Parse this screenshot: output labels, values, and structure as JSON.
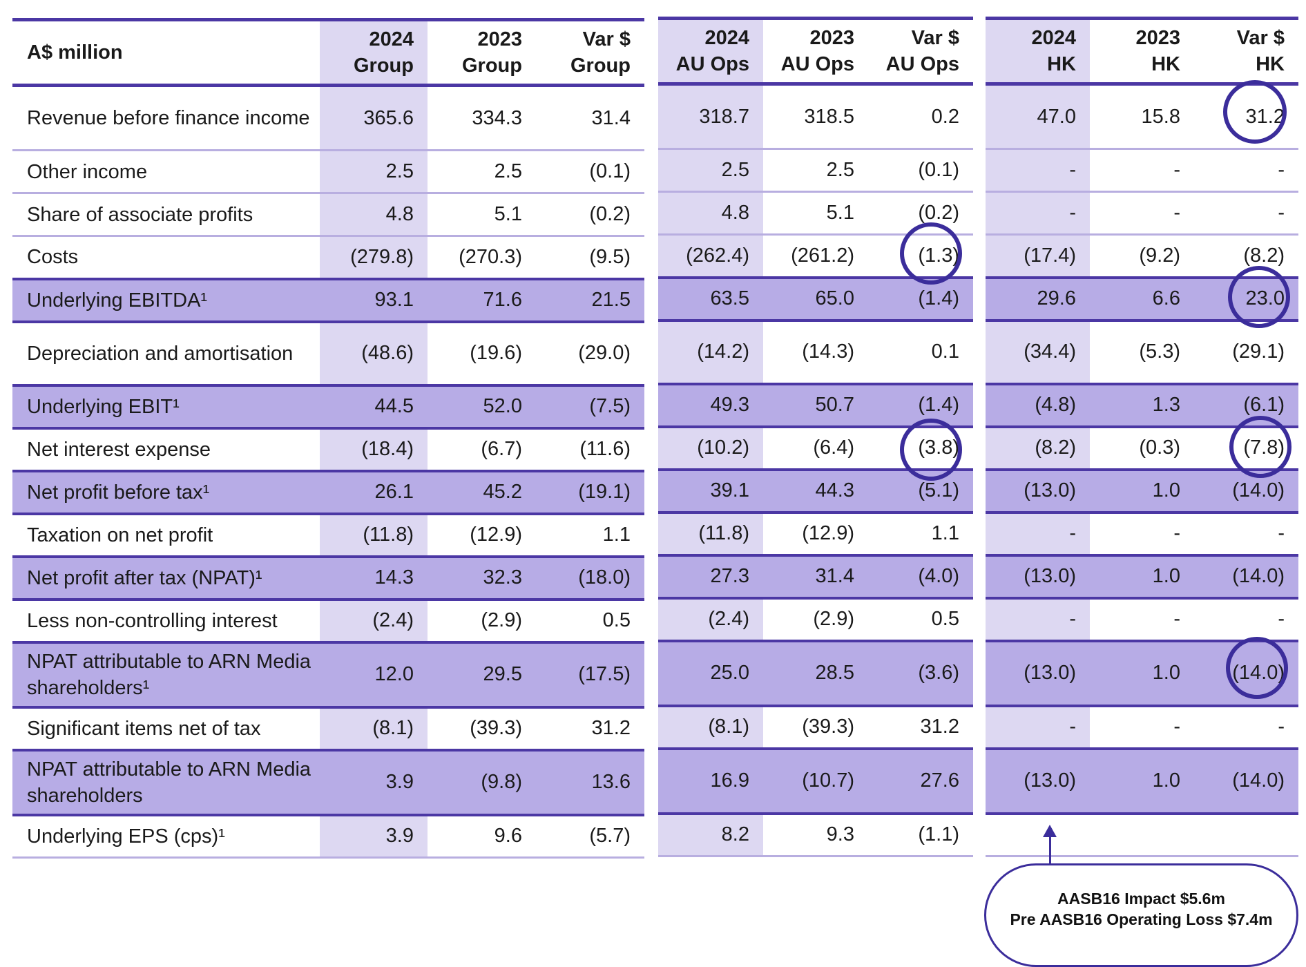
{
  "header": {
    "row_label": "A$ million",
    "group": [
      "2024\nGroup",
      "2023\nGroup",
      "Var $\nGroup"
    ],
    "au": [
      "2024\nAU Ops",
      "2023\nAU Ops",
      "Var $\nAU Ops"
    ],
    "hk": [
      "2024\nHK",
      "2023\nHK",
      "Var $\nHK"
    ]
  },
  "rows": [
    {
      "label": "Revenue before finance income",
      "highlight": false,
      "group": [
        "365.6",
        "334.3",
        "31.4"
      ],
      "au": [
        "318.7",
        "318.5",
        "0.2"
      ],
      "hk": [
        "47.0",
        "15.8",
        "31.2"
      ]
    },
    {
      "label": "Other income",
      "highlight": false,
      "group": [
        "2.5",
        "2.5",
        "(0.1)"
      ],
      "au": [
        "2.5",
        "2.5",
        "(0.1)"
      ],
      "hk": [
        "-",
        "-",
        "-"
      ]
    },
    {
      "label": "Share of associate profits",
      "highlight": false,
      "group": [
        "4.8",
        "5.1",
        "(0.2)"
      ],
      "au": [
        "4.8",
        "5.1",
        "(0.2)"
      ],
      "hk": [
        "-",
        "-",
        "-"
      ]
    },
    {
      "label": "Costs",
      "highlight": false,
      "group": [
        "(279.8)",
        "(270.3)",
        "(9.5)"
      ],
      "au": [
        "(262.4)",
        "(261.2)",
        "(1.3)"
      ],
      "hk": [
        "(17.4)",
        "(9.2)",
        "(8.2)"
      ]
    },
    {
      "label": "Underlying EBITDA¹",
      "highlight": true,
      "group": [
        "93.1",
        "71.6",
        "21.5"
      ],
      "au": [
        "63.5",
        "65.0",
        "(1.4)"
      ],
      "hk": [
        "29.6",
        "6.6",
        "23.0"
      ]
    },
    {
      "label": "Depreciation and amortisation",
      "highlight": false,
      "group": [
        "(48.6)",
        "(19.6)",
        "(29.0)"
      ],
      "au": [
        "(14.2)",
        "(14.3)",
        "0.1"
      ],
      "hk": [
        "(34.4)",
        "(5.3)",
        "(29.1)"
      ]
    },
    {
      "label": "Underlying EBIT¹",
      "highlight": true,
      "group": [
        "44.5",
        "52.0",
        "(7.5)"
      ],
      "au": [
        "49.3",
        "50.7",
        "(1.4)"
      ],
      "hk": [
        "(4.8)",
        "1.3",
        "(6.1)"
      ]
    },
    {
      "label": "Net interest expense",
      "highlight": false,
      "group": [
        "(18.4)",
        "(6.7)",
        "(11.6)"
      ],
      "au": [
        "(10.2)",
        "(6.4)",
        "(3.8)"
      ],
      "hk": [
        "(8.2)",
        "(0.3)",
        "(7.8)"
      ]
    },
    {
      "label": "Net profit before tax¹",
      "highlight": true,
      "group": [
        "26.1",
        "45.2",
        "(19.1)"
      ],
      "au": [
        "39.1",
        "44.3",
        "(5.1)"
      ],
      "hk": [
        "(13.0)",
        "1.0",
        "(14.0)"
      ]
    },
    {
      "label": "Taxation on net profit",
      "highlight": false,
      "group": [
        "(11.8)",
        "(12.9)",
        "1.1"
      ],
      "au": [
        "(11.8)",
        "(12.9)",
        "1.1"
      ],
      "hk": [
        "-",
        "-",
        "-"
      ]
    },
    {
      "label": "Net profit after tax (NPAT)¹",
      "highlight": true,
      "group": [
        "14.3",
        "32.3",
        "(18.0)"
      ],
      "au": [
        "27.3",
        "31.4",
        "(4.0)"
      ],
      "hk": [
        "(13.0)",
        "1.0",
        "(14.0)"
      ]
    },
    {
      "label": "Less non-controlling interest",
      "highlight": false,
      "group": [
        "(2.4)",
        "(2.9)",
        "0.5"
      ],
      "au": [
        "(2.4)",
        "(2.9)",
        "0.5"
      ],
      "hk": [
        "-",
        "-",
        "-"
      ]
    },
    {
      "label": "NPAT attributable to ARN Media shareholders¹",
      "highlight": true,
      "group": [
        "12.0",
        "29.5",
        "(17.5)"
      ],
      "au": [
        "25.0",
        "28.5",
        "(3.6)"
      ],
      "hk": [
        "(13.0)",
        "1.0",
        "(14.0)"
      ]
    },
    {
      "label": "Significant items net of tax",
      "highlight": false,
      "group": [
        "(8.1)",
        "(39.3)",
        "31.2"
      ],
      "au": [
        "(8.1)",
        "(39.3)",
        "31.2"
      ],
      "hk": [
        "-",
        "-",
        "-"
      ]
    },
    {
      "label": "NPAT attributable to ARN Media shareholders",
      "highlight": true,
      "group": [
        "3.9",
        "(9.8)",
        "13.6"
      ],
      "au": [
        "16.9",
        "(10.7)",
        "27.6"
      ],
      "hk": [
        "(13.0)",
        "1.0",
        "(14.0)"
      ]
    },
    {
      "label": "Underlying EPS (cps)¹",
      "highlight": false,
      "group": [
        "3.9",
        "9.6",
        "(5.7)"
      ],
      "au": [
        "8.2",
        "9.3",
        "(1.1)"
      ],
      "hk": [
        "",
        "",
        ""
      ]
    }
  ],
  "callout": {
    "line1": "AASB16 Impact $5.6m",
    "line2": "Pre AASB16 Operating Loss $7.4m"
  },
  "colors": {
    "accent": "#4b37a4",
    "highlight_row": "#b7ace6",
    "shaded_column": "#ddd8f2",
    "circle": "#3b2d9b"
  }
}
